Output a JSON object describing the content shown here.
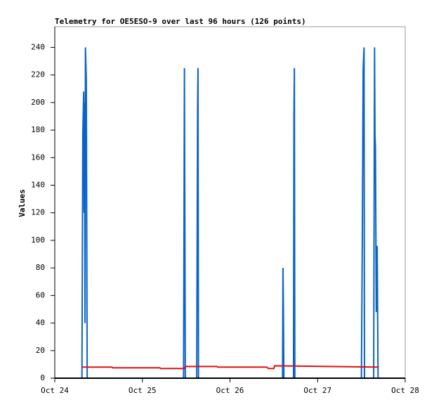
{
  "chart_data": {
    "type": "line",
    "title": "Telemetry for OE5ESO-9 over last 96 hours (126 points)",
    "y_label": "Values",
    "xlim": [
      24,
      28
    ],
    "xticks": [
      {
        "value": 24,
        "label": "Oct 24"
      },
      {
        "value": 25,
        "label": "Oct 25"
      },
      {
        "value": 26,
        "label": "Oct 26"
      },
      {
        "value": 27,
        "label": "Oct 27"
      },
      {
        "value": 28,
        "label": "Oct 28"
      }
    ],
    "ylim": [
      0,
      255
    ],
    "yticks": [
      0,
      20,
      40,
      60,
      80,
      100,
      120,
      140,
      160,
      180,
      200,
      220,
      240
    ],
    "grid": false,
    "series": [
      {
        "color": "#0a64c8",
        "x": [
          24.31,
          24.315,
          24.32,
          24.325,
          24.33,
          24.335,
          24.34,
          24.345,
          24.35,
          24.36,
          24.37,
          25.47,
          25.475,
          25.48,
          25.49,
          25.62,
          25.625,
          25.63,
          25.635,
          25.64,
          26.6,
          26.605,
          26.61,
          26.615,
          26.725,
          26.73,
          26.735,
          26.74,
          27.5,
          27.505,
          27.51,
          27.52,
          27.53,
          27.535,
          27.64,
          27.645,
          27.65,
          27.655,
          27.66,
          27.67,
          27.68,
          27.69,
          27.7
        ],
        "values": [
          0,
          88,
          177,
          192,
          208,
          120,
          200,
          40,
          240,
          216,
          0,
          0,
          112,
          225,
          0,
          0,
          96,
          192,
          225,
          0,
          0,
          80,
          48,
          0,
          0,
          192,
          225,
          0,
          0,
          48,
          96,
          224,
          240,
          0,
          0,
          120,
          240,
          176,
          168,
          48,
          96,
          0,
          0
        ]
      },
      {
        "color": "#e01010",
        "x": [
          24.31,
          24.65,
          24.66,
          25.2,
          25.21,
          25.48,
          25.49,
          25.85,
          25.86,
          26.42,
          26.44,
          26.5,
          26.51,
          27.7
        ],
        "values": [
          8,
          8,
          7.5,
          7.5,
          7,
          7,
          8.5,
          8.5,
          8,
          8,
          7,
          7,
          9,
          8
        ]
      }
    ]
  }
}
